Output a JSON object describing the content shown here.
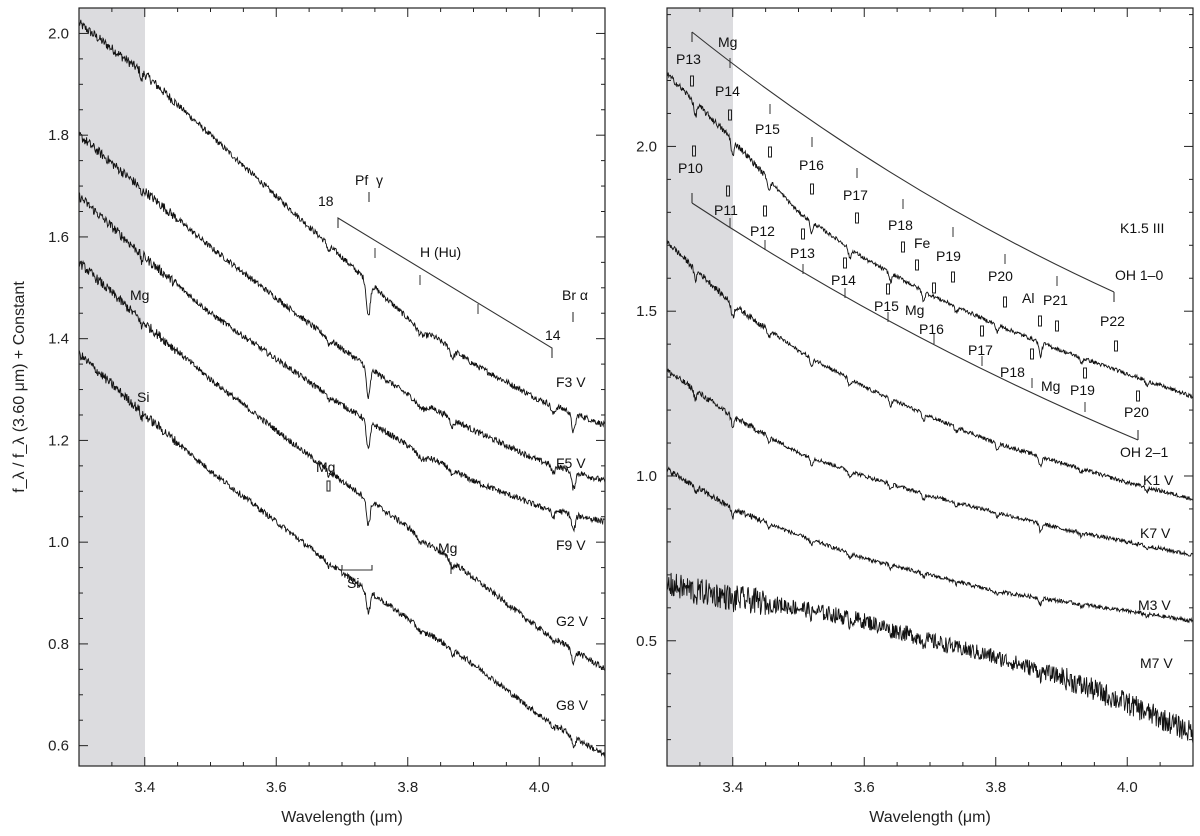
{
  "chart_data": [
    {
      "type": "line",
      "panel": "left",
      "xlabel": "Wavelength (μm)",
      "ylabel": "f_λ / f_λ (3.60 μm) + Constant",
      "xlim": [
        3.3,
        4.1
      ],
      "ylim": [
        0.56,
        2.05
      ],
      "xticks": [
        "3.4",
        "3.6",
        "3.8",
        "4.0"
      ],
      "yticks": [
        "0.6",
        "0.8",
        "1.0",
        "1.2",
        "1.4",
        "1.6",
        "1.8",
        "2.0"
      ],
      "shaded_band": [
        3.3,
        3.4
      ],
      "grid": false,
      "series": [
        {
          "name": "F3 V",
          "x": [
            3.3,
            3.4,
            3.5,
            3.6,
            3.7,
            3.8,
            3.9,
            4.0,
            4.1
          ],
          "y": [
            2.02,
            1.92,
            1.8,
            1.68,
            1.56,
            1.44,
            1.35,
            1.28,
            1.23
          ]
        },
        {
          "name": "F5 V",
          "x": [
            3.3,
            3.4,
            3.5,
            3.6,
            3.7,
            3.8,
            3.9,
            4.0,
            4.1
          ],
          "y": [
            1.8,
            1.69,
            1.58,
            1.48,
            1.38,
            1.29,
            1.22,
            1.16,
            1.12
          ]
        },
        {
          "name": "F9 V",
          "x": [
            3.3,
            3.4,
            3.5,
            3.6,
            3.7,
            3.8,
            3.9,
            4.0,
            4.1
          ],
          "y": [
            1.68,
            1.56,
            1.45,
            1.36,
            1.27,
            1.19,
            1.12,
            1.07,
            1.04
          ]
        },
        {
          "name": "G2 V",
          "x": [
            3.3,
            3.4,
            3.5,
            3.6,
            3.7,
            3.8,
            3.9,
            4.0,
            4.1
          ],
          "y": [
            1.55,
            1.43,
            1.32,
            1.22,
            1.12,
            1.03,
            0.93,
            0.83,
            0.75
          ]
        },
        {
          "name": "G8 V",
          "x": [
            3.3,
            3.4,
            3.5,
            3.6,
            3.7,
            3.8,
            3.9,
            4.0,
            4.1
          ],
          "y": [
            1.37,
            1.25,
            1.14,
            1.04,
            0.94,
            0.85,
            0.76,
            0.66,
            0.58
          ]
        }
      ],
      "annotations": {
        "lines_top": [
          "18",
          "Pf",
          "γ",
          "H (Hu)",
          "Br α",
          "14"
        ],
        "left_labels": [
          "Mg",
          "Si"
        ],
        "mid_labels": [
          "Mg",
          "Si",
          "Mg"
        ]
      }
    },
    {
      "type": "line",
      "panel": "right",
      "xlabel": "Wavelength (μm)",
      "xlim": [
        3.3,
        4.1
      ],
      "ylim": [
        0.12,
        2.42
      ],
      "xticks": [
        "3.4",
        "3.6",
        "3.8",
        "4.0"
      ],
      "yticks": [
        "0.5",
        "1.0",
        "1.5",
        "2.0"
      ],
      "shaded_band": [
        3.3,
        3.4
      ],
      "grid": false,
      "series": [
        {
          "name": "K1.5 III",
          "x": [
            3.3,
            3.4,
            3.5,
            3.6,
            3.7,
            3.8,
            3.9,
            4.0,
            4.1
          ],
          "y": [
            2.22,
            2.02,
            1.8,
            1.66,
            1.55,
            1.46,
            1.38,
            1.31,
            1.24
          ]
        },
        {
          "name": "K1 V",
          "x": [
            3.3,
            3.4,
            3.5,
            3.6,
            3.7,
            3.8,
            3.9,
            4.0,
            4.1
          ],
          "y": [
            1.71,
            1.52,
            1.38,
            1.27,
            1.18,
            1.1,
            1.04,
            0.98,
            0.93
          ]
        },
        {
          "name": "K7 V",
          "x": [
            3.3,
            3.4,
            3.5,
            3.6,
            3.7,
            3.8,
            3.9,
            4.0,
            4.1
          ],
          "y": [
            1.32,
            1.18,
            1.07,
            1.0,
            0.94,
            0.89,
            0.84,
            0.8,
            0.76
          ]
        },
        {
          "name": "M3 V",
          "x": [
            3.3,
            3.4,
            3.5,
            3.6,
            3.7,
            3.8,
            3.9,
            4.0,
            4.1
          ],
          "y": [
            1.02,
            0.9,
            0.82,
            0.75,
            0.7,
            0.65,
            0.62,
            0.59,
            0.56
          ]
        },
        {
          "name": "M7 V",
          "x": [
            3.3,
            3.4,
            3.5,
            3.6,
            3.7,
            3.8,
            3.9,
            4.0,
            4.1
          ],
          "y": [
            0.67,
            0.63,
            0.6,
            0.56,
            0.5,
            0.45,
            0.39,
            0.31,
            0.22
          ]
        }
      ],
      "annotations": {
        "bands": [
          "OH 1–0",
          "OH 2–1"
        ],
        "upper_labels": [
          "Mg",
          "P13",
          "P14",
          "P15",
          "P16",
          "P17",
          "P18",
          "Fe",
          "P19",
          "P20",
          "Al",
          "P21",
          "P22"
        ],
        "lower_labels": [
          "P10",
          "P11",
          "P12",
          "P13",
          "P14",
          "P15",
          "Mg",
          "P16",
          "P17",
          "P18",
          "Mg",
          "P19",
          "P20"
        ]
      }
    }
  ]
}
